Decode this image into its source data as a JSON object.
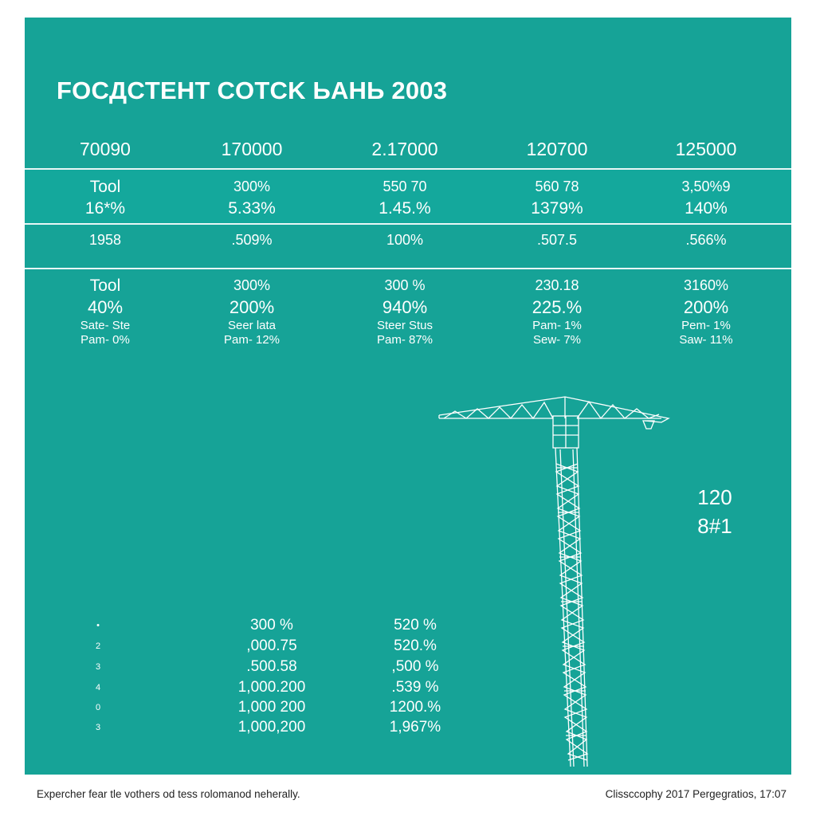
{
  "title": "FOCДCTEHT COTCK ЬAHЬ 2003",
  "header": [
    "70090",
    "170000",
    "2.17000",
    "120700",
    "125000"
  ],
  "row1": {
    "line1": [
      "Tool",
      "300%",
      "550 70",
      "560 78",
      "3,50%9"
    ],
    "line2": [
      "16*%",
      "5.33%",
      "1.45.%",
      "1379%",
      "140%"
    ]
  },
  "row2": [
    "1958",
    ".509%",
    "100%",
    ".507.5",
    ".566%"
  ],
  "row3": {
    "line1": [
      "Tool",
      "300%",
      "300 %",
      "230.18",
      "3160%"
    ],
    "line2": [
      "40%",
      "200%",
      "940%",
      "225.%",
      "200%"
    ],
    "line3": [
      "Sate- Ste",
      "Seer lata",
      "Steer Stus",
      "Pam- 1%",
      "Pem- 1%"
    ],
    "line4": [
      "Pam- 0%",
      "Pam- 12%",
      "Pam- 87%",
      "Sew- 7%",
      "Saw- 11%"
    ]
  },
  "side_label": {
    "line1": "120",
    "line2": "8#1"
  },
  "list": [
    {
      "n": "•",
      "a": "300 %",
      "b": "520 %"
    },
    {
      "n": "2",
      "a": ",000.75",
      "b": "520.%"
    },
    {
      "n": "3",
      "a": ".500.58",
      "b": ",500 %"
    },
    {
      "n": "4",
      "a": "1,000.200",
      "b": ".539 %"
    },
    {
      "n": "0",
      "a": "1,000 200",
      "b": "1200.%"
    },
    {
      "n": "3",
      "a": "1,000,200",
      "b": "1,967%"
    }
  ],
  "footer": {
    "left": "Expercher fear tle vothers od tess rolomanod neherally.",
    "right": "Clissccophy 2017 Pergegratios, 17:07"
  },
  "colors": {
    "background": "#16a397",
    "text": "#ffffff",
    "page": "#ffffff"
  },
  "illustration": "tower-crane-wireframe"
}
